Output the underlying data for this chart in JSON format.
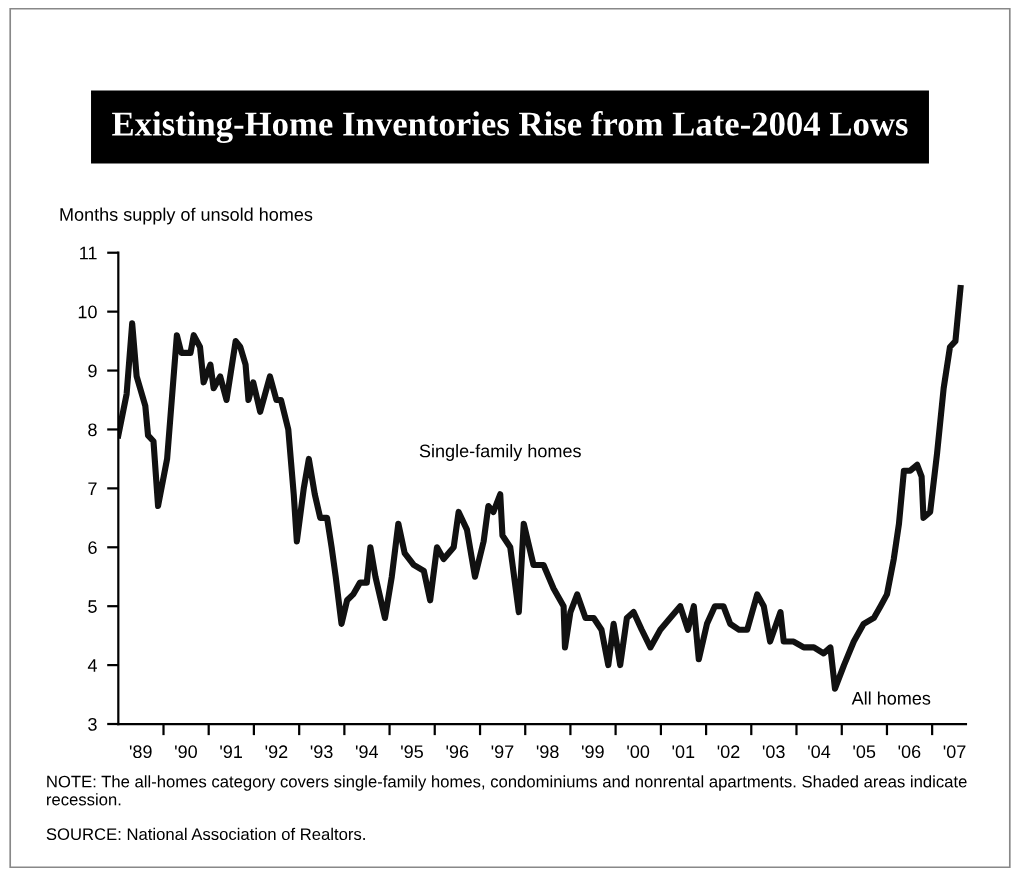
{
  "chart_data": {
    "type": "line",
    "title": "Existing-Home Inventories Rise from Late-2004 Lows",
    "ylabel": "Months supply of unsold homes",
    "x": [
      "1989-01-01",
      "1989-03-09",
      "1989-04-23",
      "1989-05-29",
      "1989-08-07",
      "1989-08-29",
      "1989-10-12",
      "1989-11-18",
      "1990-01-30",
      "1990-04-19",
      "1990-05-25",
      "1990-08-07",
      "1990-09-02",
      "1990-10-23",
      "1990-11-21",
      "1991-01-15",
      "1991-02-10",
      "1991-04-04",
      "1991-05-25",
      "1991-08-07",
      "1991-09-13",
      "1991-10-26",
      "1991-11-18",
      "1991-12-27",
      "1992-02-21",
      "1992-05-10",
      "1992-07-01",
      "1992-08-07",
      "1992-10-05",
      "1992-11-18",
      "1992-12-13",
      "1993-02-07",
      "1993-03-20",
      "1993-05-07",
      "1993-06-20",
      "1993-08-14",
      "1993-09-20",
      "1993-10-23",
      "1993-12-09",
      "1994-01-23",
      "1994-03-13",
      "1994-05-07",
      "1994-07-01",
      "1994-07-30",
      "1994-09-09",
      "1994-11-25",
      "1995-01-19",
      "1995-03-13",
      "1995-05-03",
      "1995-07-15",
      "1995-10-05",
      "1995-11-25",
      "1996-01-19",
      "1996-03-13",
      "1996-06-02",
      "1996-07-12",
      "1996-09-17",
      "1996-11-21",
      "1997-01-30",
      "1997-03-09",
      "1997-04-19",
      "1997-06-13",
      "1997-07-01",
      "1997-09-02",
      "1997-11-10",
      "1997-12-20",
      "1998-03-09",
      "1998-05-29",
      "1998-08-18",
      "1998-11-07",
      "1998-11-18",
      "1999-01-01",
      "1999-02-25",
      "1999-05-03",
      "1999-07-08",
      "1999-09-09",
      "1999-11-03",
      "1999-12-16",
      "2000-02-07",
      "2000-04-01",
      "2000-05-25",
      "2000-07-30",
      "2000-10-08",
      "2000-12-27",
      "2001-03-17",
      "2001-06-06",
      "2001-08-07",
      "2001-09-24",
      "2001-11-03",
      "2002-01-08",
      "2002-03-13",
      "2002-05-21",
      "2002-07-15",
      "2002-09-24",
      "2002-11-29",
      "2003-02-18",
      "2003-04-12",
      "2003-06-02",
      "2003-08-25",
      "2003-09-20",
      "2003-12-09",
      "2004-02-29",
      "2004-05-21",
      "2004-08-07",
      "2004-10-01",
      "2004-11-07",
      "2005-01-19",
      "2005-04-08",
      "2005-06-27",
      "2005-09-17",
      "2005-11-10",
      "2006-01-01",
      "2006-02-25",
      "2006-04-08",
      "2006-05-18",
      "2006-07-08",
      "2006-09-02",
      "2006-10-08",
      "2006-10-23",
      "2006-12-16",
      "2007-02-10",
      "2007-04-04",
      "2007-05-25",
      "2007-07-08",
      "2007-08-18"
    ],
    "series": [
      {
        "color": "#111111",
        "values": [
          7.9,
          8.6,
          9.8,
          8.9,
          8.4,
          7.9,
          7.8,
          6.7,
          7.5,
          9.6,
          9.3,
          9.3,
          9.6,
          9.4,
          8.8,
          9.1,
          8.7,
          8.9,
          8.5,
          9.5,
          9.4,
          9.1,
          8.5,
          8.8,
          8.3,
          8.9,
          8.5,
          8.5,
          8.0,
          6.9,
          6.1,
          7.0,
          7.5,
          6.9,
          6.5,
          6.5,
          6.0,
          5.5,
          4.7,
          5.1,
          5.2,
          5.4,
          5.4,
          6.0,
          5.5,
          4.8,
          5.5,
          6.4,
          5.9,
          5.7,
          5.6,
          5.1,
          6.0,
          5.8,
          6.0,
          6.6,
          6.3,
          5.5,
          6.1,
          6.7,
          6.6,
          6.9,
          6.2,
          6.0,
          4.9,
          6.4,
          5.7,
          5.7,
          5.3,
          5.0,
          4.3,
          4.9,
          5.2,
          4.8,
          4.8,
          4.6,
          4.0,
          4.7,
          4.0,
          4.8,
          4.9,
          4.6,
          4.3,
          4.6,
          4.8,
          5.0,
          4.6,
          5.0,
          4.1,
          4.7,
          5.0,
          5.0,
          4.7,
          4.6,
          4.6,
          5.2,
          5.0,
          4.4,
          4.9,
          4.4,
          4.4,
          4.3,
          4.3,
          4.2,
          4.3,
          3.6,
          4.0,
          4.4,
          4.7,
          4.8,
          5.0,
          5.2,
          5.8,
          6.4,
          7.3,
          7.3,
          7.4,
          7.2,
          6.5,
          6.6,
          7.6,
          8.7,
          9.4,
          9.5,
          10.4
        ]
      }
    ],
    "xlim": [
      "1989-01-01",
      "2007-10-01"
    ],
    "xticks": [
      {
        "value": "1989-07-01",
        "label": "'89"
      },
      {
        "value": "1990-01-01",
        "label": null
      },
      {
        "value": "1990-07-01",
        "label": "'90"
      },
      {
        "value": "1991-01-01",
        "label": null
      },
      {
        "value": "1991-07-01",
        "label": "'91"
      },
      {
        "value": "1992-01-01",
        "label": null
      },
      {
        "value": "1992-07-01",
        "label": "'92"
      },
      {
        "value": "1993-01-01",
        "label": null
      },
      {
        "value": "1993-07-01",
        "label": "'93"
      },
      {
        "value": "1994-01-01",
        "label": null
      },
      {
        "value": "1994-07-01",
        "label": "'94"
      },
      {
        "value": "1995-01-01",
        "label": null
      },
      {
        "value": "1995-07-01",
        "label": "'95"
      },
      {
        "value": "1996-01-01",
        "label": null
      },
      {
        "value": "1996-07-01",
        "label": "'96"
      },
      {
        "value": "1997-01-01",
        "label": null
      },
      {
        "value": "1997-07-01",
        "label": "'97"
      },
      {
        "value": "1998-01-01",
        "label": null
      },
      {
        "value": "1998-07-01",
        "label": "'98"
      },
      {
        "value": "1999-01-01",
        "label": null
      },
      {
        "value": "1999-07-01",
        "label": "'99"
      },
      {
        "value": "2000-01-01",
        "label": null
      },
      {
        "value": "2000-07-01",
        "label": "'00"
      },
      {
        "value": "2001-01-01",
        "label": null
      },
      {
        "value": "2001-07-01",
        "label": "'01"
      },
      {
        "value": "2002-01-01",
        "label": null
      },
      {
        "value": "2002-07-01",
        "label": "'02"
      },
      {
        "value": "2003-01-01",
        "label": null
      },
      {
        "value": "2003-07-01",
        "label": "'03"
      },
      {
        "value": "2004-01-01",
        "label": null
      },
      {
        "value": "2004-07-01",
        "label": "'04"
      },
      {
        "value": "2005-01-01",
        "label": null
      },
      {
        "value": "2005-07-01",
        "label": "'05"
      },
      {
        "value": "2006-01-01",
        "label": null
      },
      {
        "value": "2006-07-01",
        "label": "'06"
      },
      {
        "value": "2007-01-01",
        "label": null
      },
      {
        "value": "2007-07-01",
        "label": "'07"
      }
    ],
    "ylim": [
      3,
      11
    ],
    "yticks": [
      3,
      4,
      5,
      6,
      7,
      8,
      9,
      10,
      11
    ],
    "grid": false,
    "annotations": [
      {
        "text": "Single-family homes",
        "x": "1997-06-13",
        "y": 6.9
      },
      {
        "text": "All homes",
        "x": "2004-11-07",
        "y": 3.6
      },
      "NOTE: The all-homes category covers single-family homes, condominiums and nonrental apartments. Shaded areas indicate recession.",
      "SOURCE: National Association of Realtors."
    ]
  }
}
